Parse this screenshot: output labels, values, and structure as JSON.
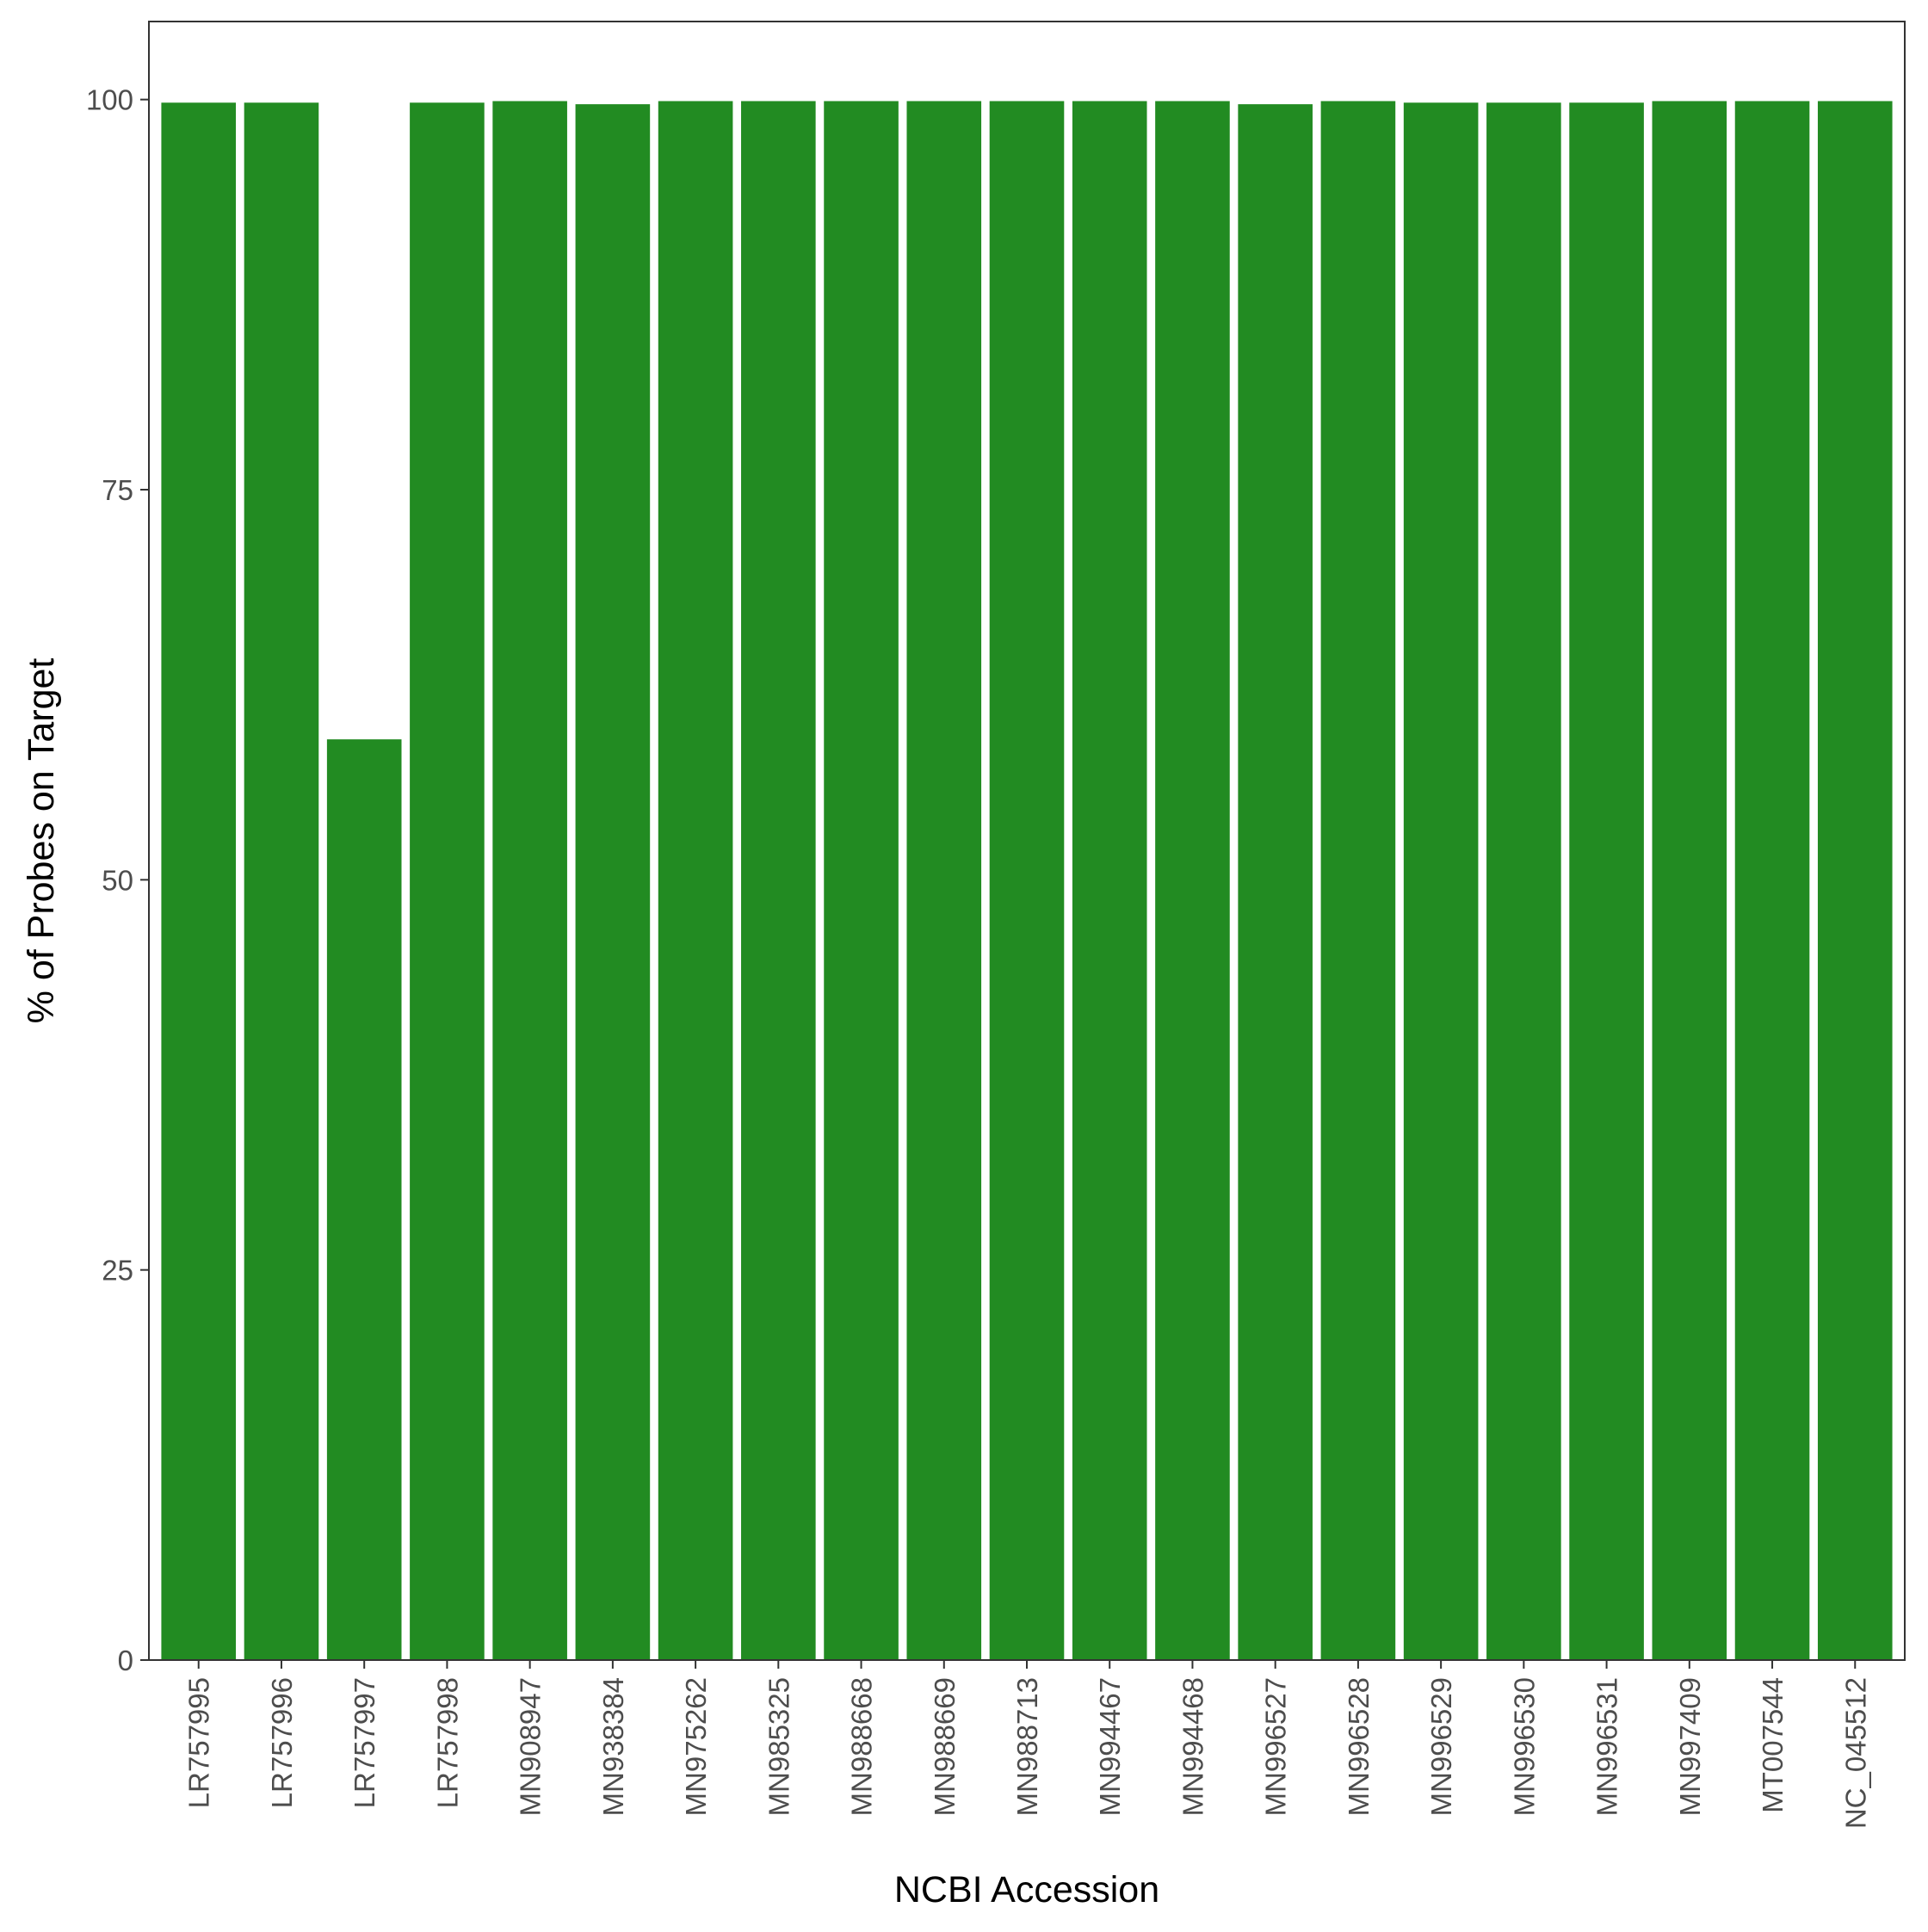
{
  "chart_data": {
    "type": "bar",
    "title": "",
    "xlabel": "NCBI Accession",
    "ylabel": "% of Probes on Target",
    "categories": [
      "LR757995",
      "LR757996",
      "LR757997",
      "LR757998",
      "MN908947",
      "MN938384",
      "MN975262",
      "MN985325",
      "MN988668",
      "MN988669",
      "MN988713",
      "MN994467",
      "MN994468",
      "MN996527",
      "MN996528",
      "MN996529",
      "MN996530",
      "MN996531",
      "MN997409",
      "MT007544",
      "NC_045512"
    ],
    "values": [
      99.8,
      99.8,
      59.0,
      99.8,
      99.9,
      99.7,
      99.9,
      99.9,
      99.9,
      99.9,
      99.9,
      99.9,
      99.9,
      99.7,
      99.9,
      99.8,
      99.8,
      99.8,
      99.9,
      99.9,
      99.9
    ],
    "ylim": [
      0,
      105
    ],
    "yticks": [
      0,
      25,
      50,
      75,
      100
    ],
    "bar_color": "#228b22",
    "grid": false,
    "legend": "none"
  }
}
